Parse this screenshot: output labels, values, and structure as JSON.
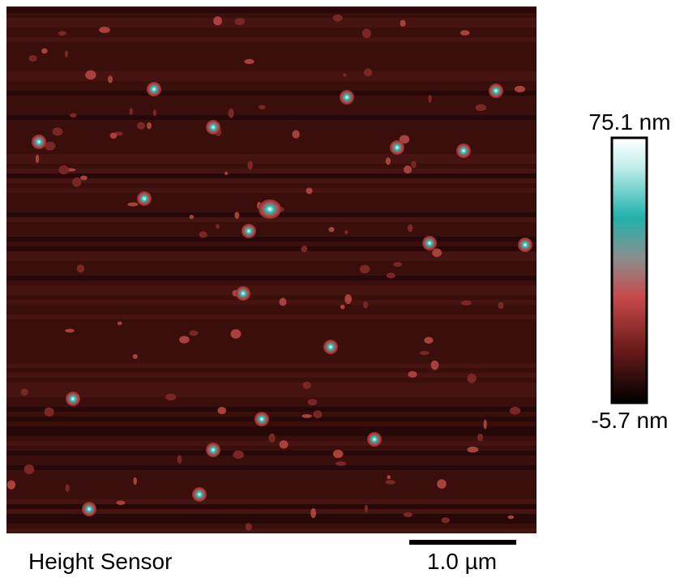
{
  "image": {
    "caption": "Height Sensor"
  },
  "colorbar": {
    "max_label": "75.1 nm",
    "min_label": "-5.7 nm"
  },
  "scale_bar": {
    "label": "1.0 µm"
  }
}
